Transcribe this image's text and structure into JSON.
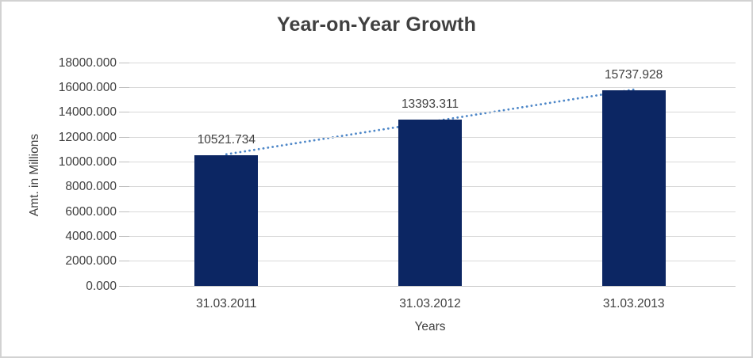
{
  "chart_data": {
    "type": "bar",
    "title": "Year-on-Year Growth",
    "xlabel": "Years",
    "ylabel": "Amt. in Millions",
    "categories": [
      "31.03.2011",
      "31.03.2012",
      "31.03.2013"
    ],
    "values": [
      10521.734,
      13393.311,
      15737.928
    ],
    "data_labels": [
      "10521.734",
      "13393.311",
      "15737.928"
    ],
    "ylim": [
      0,
      18000
    ],
    "ytick_labels": [
      "0.000",
      "2000.000",
      "4000.000",
      "6000.000",
      "8000.000",
      "10000.000",
      "12000.000",
      "14000.000",
      "16000.000",
      "18000.000"
    ],
    "grid": true,
    "legend": "none",
    "trendline": {
      "type": "linear",
      "style": "dotted"
    },
    "colors": {
      "bar": "#0c2663",
      "trendline": "#4e87c8",
      "gridline": "#d9d9d9",
      "axis_line": "#c9c9c9",
      "tick_mark": "#bfbfbf",
      "text": "#404040",
      "background": "#ffffff",
      "border": "#d2d2d2"
    }
  }
}
